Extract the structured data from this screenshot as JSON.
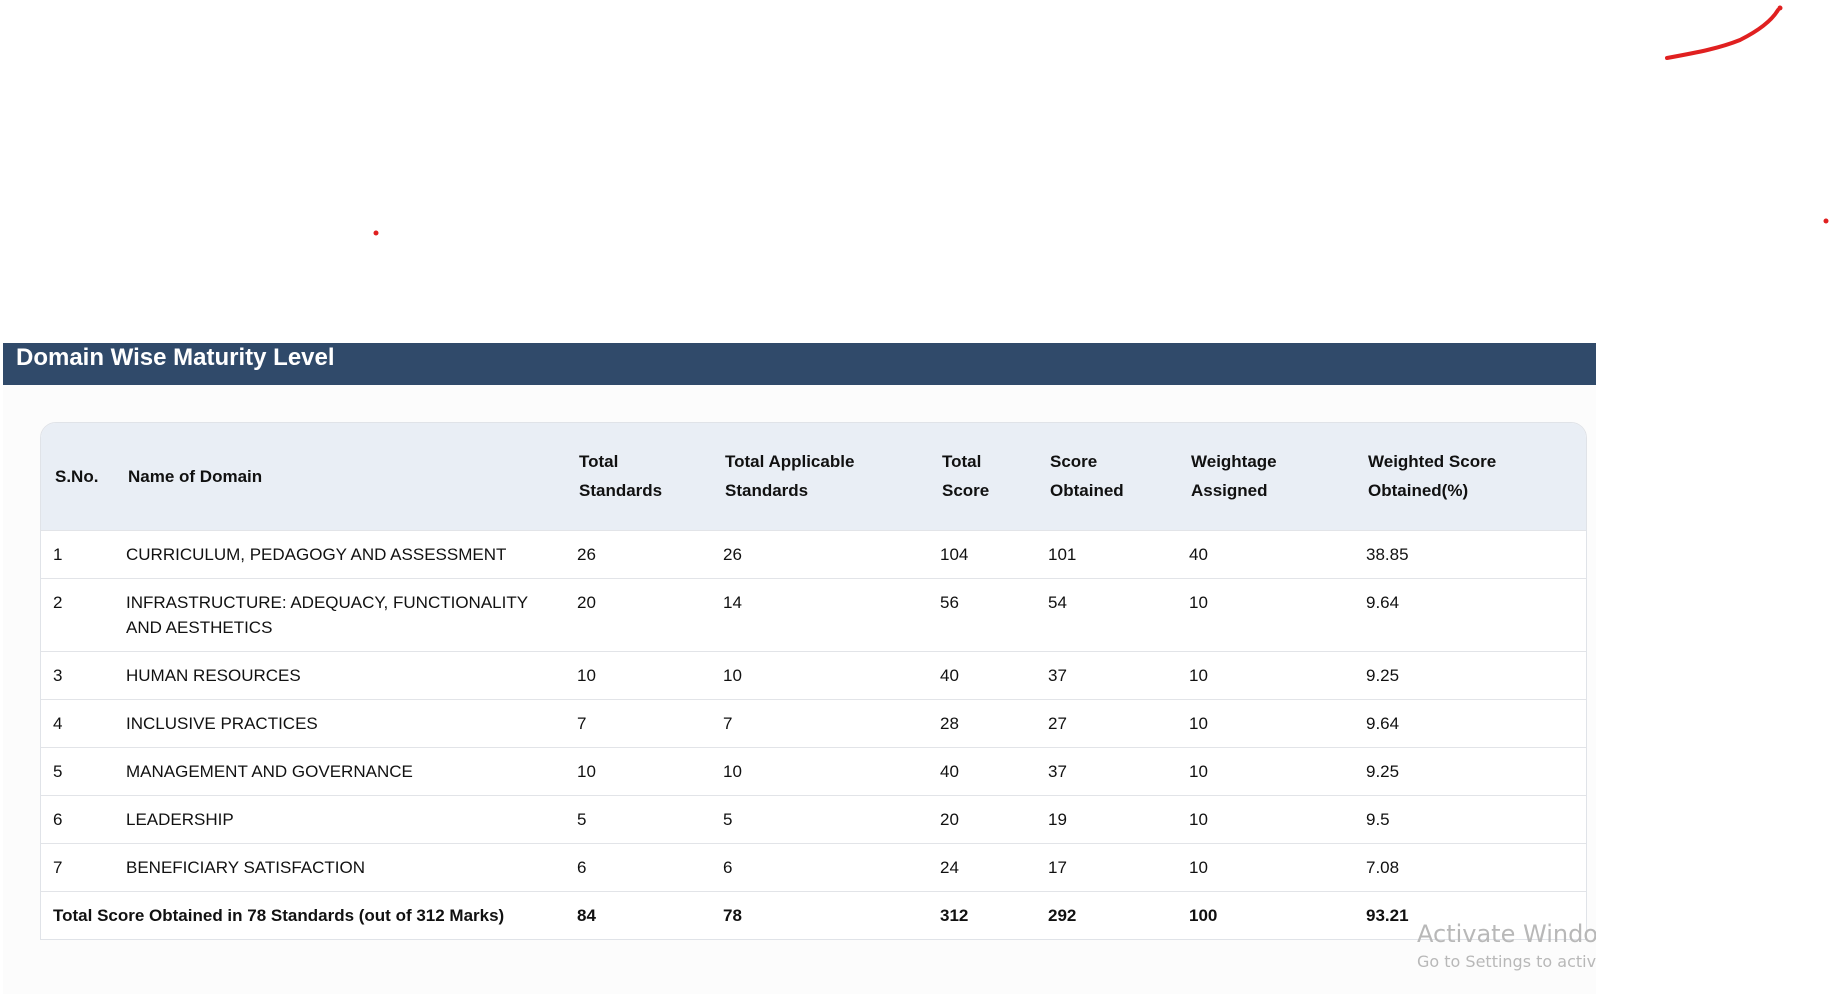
{
  "section_title": "Domain Wise Maturity Level",
  "table": {
    "headers": [
      "S.No.",
      "Name of Domain",
      "Total Standards",
      "Total Applicable Standards",
      "Total Score",
      "Score Obtained",
      "Weightage Assigned",
      "Weighted Score Obtained(%)"
    ],
    "rows": [
      [
        "1",
        "CURRICULUM, PEDAGOGY AND ASSESSMENT",
        "26",
        "26",
        "104",
        "101",
        "40",
        "38.85"
      ],
      [
        "2",
        "INFRASTRUCTURE: ADEQUACY, FUNCTIONALITY AND AESTHETICS",
        "20",
        "14",
        "56",
        "54",
        "10",
        "9.64"
      ],
      [
        "3",
        "HUMAN RESOURCES",
        "10",
        "10",
        "40",
        "37",
        "10",
        "9.25"
      ],
      [
        "4",
        "INCLUSIVE PRACTICES",
        "7",
        "7",
        "28",
        "27",
        "10",
        "9.64"
      ],
      [
        "5",
        "MANAGEMENT AND GOVERNANCE",
        "10",
        "10",
        "40",
        "37",
        "10",
        "9.25"
      ],
      [
        "6",
        "LEADERSHIP",
        "5",
        "5",
        "20",
        "19",
        "10",
        "9.5"
      ],
      [
        "7",
        "BENEFICIARY SATISFACTION",
        "6",
        "6",
        "24",
        "17",
        "10",
        "7.08"
      ]
    ],
    "total_row": {
      "label": "Total Score Obtained in 78 Standards (out of 312 Marks)",
      "values": [
        "84",
        "78",
        "312",
        "292",
        "100",
        "93.21"
      ]
    }
  },
  "watermark": {
    "line1": "Activate Windows",
    "line2": "Go to Settings to activate Windows."
  },
  "colors": {
    "header_bar": "#304a6a",
    "table_header": "#e9eef5",
    "annotation": "#e02020"
  }
}
